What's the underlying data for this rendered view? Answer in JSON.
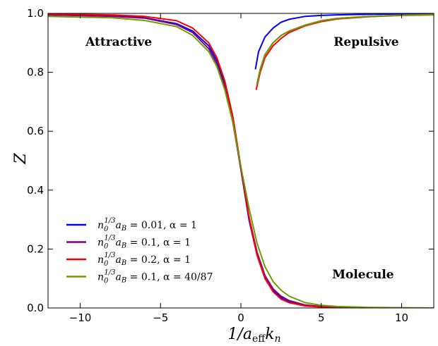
{
  "chart_data": {
    "type": "line",
    "xlabel": "1/a_eff k_n",
    "xlabel_main": "1/a",
    "xlabel_sub": "eff",
    "xlabel_tail": "k",
    "xlabel_tail_sub": "n",
    "ylabel": "Z",
    "xlim": [
      -12,
      12
    ],
    "ylim": [
      0,
      1
    ],
    "x_ticks": [
      -10,
      -5,
      0,
      5,
      10
    ],
    "x_tick_labels": [
      "−10",
      "−5",
      "0",
      "5",
      "10"
    ],
    "y_ticks": [
      0,
      0.2,
      0.4,
      0.6,
      0.8,
      1.0
    ],
    "y_tick_labels": [
      "0.0",
      "0.2",
      "0.4",
      "0.6",
      "0.8",
      "1.0"
    ],
    "grid": false,
    "legend_position": "lower-left",
    "annotations": [
      {
        "text": "Attractive",
        "x": -7.6,
        "y": 0.89
      },
      {
        "text": "Repulsive",
        "x": 7.8,
        "y": 0.89
      },
      {
        "text": "Molecule",
        "x": 7.6,
        "y": 0.1
      }
    ],
    "series": [
      {
        "name": "n_0^{1/3} a_B = 0.01, α = 1",
        "label_coef": "0.01",
        "label_alpha": "1",
        "color": "#0000ff",
        "molecule": {
          "x": [
            -12,
            -8,
            -6,
            -4,
            -3,
            -2,
            -1.5,
            -1,
            -0.5,
            0,
            0.5,
            1,
            1.5,
            2,
            2.5,
            3,
            4,
            5,
            6,
            8,
            10,
            12
          ],
          "y": [
            0.995,
            0.992,
            0.985,
            0.965,
            0.94,
            0.89,
            0.84,
            0.76,
            0.64,
            0.47,
            0.3,
            0.18,
            0.1,
            0.06,
            0.035,
            0.02,
            0.008,
            0.004,
            0.002,
            0.001,
            0,
            0
          ]
        },
        "repulsive": {
          "x": [
            0.9,
            1.1,
            1.5,
            2,
            2.5,
            3,
            3.5,
            4,
            5,
            6,
            8,
            10,
            12
          ],
          "y": [
            0.81,
            0.87,
            0.92,
            0.95,
            0.97,
            0.98,
            0.985,
            0.99,
            0.993,
            0.995,
            0.997,
            0.998,
            0.999
          ]
        }
      },
      {
        "name": "n_0^{1/3} a_B = 0.1, α = 1",
        "label_coef": "0.1",
        "label_alpha": "1",
        "color": "#800080",
        "molecule": {
          "x": [
            -12,
            -8,
            -6,
            -4,
            -3,
            -2,
            -1.5,
            -1,
            -0.5,
            0,
            0.5,
            1,
            1.5,
            2,
            2.5,
            3,
            4,
            5,
            6,
            8,
            10,
            12
          ],
          "y": [
            0.995,
            0.99,
            0.984,
            0.962,
            0.935,
            0.88,
            0.83,
            0.75,
            0.63,
            0.47,
            0.31,
            0.19,
            0.11,
            0.065,
            0.04,
            0.025,
            0.01,
            0.005,
            0.002,
            0.001,
            0,
            0
          ]
        },
        "repulsive": {
          "x": [
            1.0,
            1.2,
            1.5,
            2,
            2.5,
            3,
            4,
            5,
            6,
            8,
            10,
            12
          ],
          "y": [
            0.76,
            0.81,
            0.86,
            0.9,
            0.925,
            0.94,
            0.96,
            0.975,
            0.983,
            0.99,
            0.994,
            0.996
          ]
        }
      },
      {
        "name": "n_0^{1/3} a_B = 0.2, α = 1",
        "label_coef": "0.2",
        "label_alpha": "1",
        "color": "#ff0000",
        "molecule": {
          "x": [
            -12,
            -8,
            -6,
            -4,
            -3,
            -2,
            -1.5,
            -1,
            -0.5,
            0,
            0.5,
            1,
            1.5,
            2,
            2.5,
            3,
            4,
            5,
            6,
            8,
            10,
            12
          ],
          "y": [
            0.998,
            0.995,
            0.99,
            0.975,
            0.95,
            0.9,
            0.85,
            0.77,
            0.65,
            0.48,
            0.31,
            0.18,
            0.1,
            0.055,
            0.03,
            0.018,
            0.007,
            0.003,
            0.001,
            0,
            0,
            0
          ]
        },
        "repulsive": {
          "x": [
            0.95,
            1.2,
            1.5,
            2,
            2.5,
            3,
            4,
            5,
            6,
            8,
            10,
            12
          ],
          "y": [
            0.74,
            0.8,
            0.85,
            0.89,
            0.915,
            0.935,
            0.958,
            0.972,
            0.981,
            0.989,
            0.993,
            0.995
          ]
        }
      },
      {
        "name": "n_0^{1/3} a_B = 0.1, α = 40/87",
        "label_coef": "0.1",
        "label_alpha": "40/87",
        "color": "#6b9e00",
        "molecule": {
          "x": [
            -12,
            -8,
            -6,
            -4,
            -3,
            -2,
            -1.5,
            -1,
            -0.5,
            0,
            0.5,
            1,
            1.5,
            2,
            2.5,
            3,
            4,
            5,
            6,
            8,
            10,
            12
          ],
          "y": [
            0.99,
            0.985,
            0.976,
            0.955,
            0.925,
            0.87,
            0.82,
            0.74,
            0.63,
            0.48,
            0.34,
            0.22,
            0.14,
            0.09,
            0.06,
            0.04,
            0.018,
            0.009,
            0.005,
            0.002,
            0.001,
            0
          ]
        },
        "repulsive": {
          "x": [
            1.0,
            1.2,
            1.5,
            2,
            2.5,
            3,
            4,
            5,
            6,
            8,
            10,
            12
          ],
          "y": [
            0.76,
            0.81,
            0.86,
            0.9,
            0.925,
            0.94,
            0.96,
            0.975,
            0.983,
            0.99,
            0.994,
            0.996
          ]
        }
      }
    ]
  }
}
